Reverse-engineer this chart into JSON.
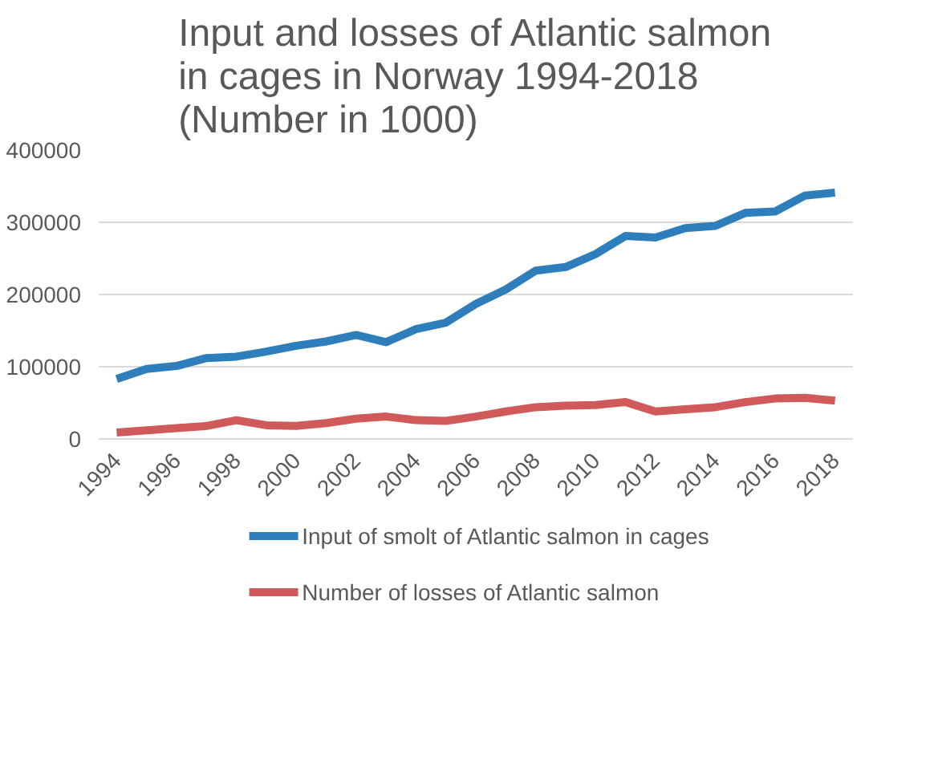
{
  "chart_data": {
    "type": "line",
    "title": "Input and losses of Atlantic salmon\nin cages in Norway 1994-2018\n(Number in 1000)",
    "categories": [
      "1994",
      null,
      "1996",
      null,
      "1998",
      null,
      "2000",
      null,
      "2002",
      null,
      "2004",
      null,
      "2006",
      null,
      "2008",
      null,
      "2010",
      null,
      "2012",
      null,
      "2014",
      null,
      "2016",
      null,
      "2018"
    ],
    "series": [
      {
        "name": "Input of smolt of Atlantic salmon in cages",
        "color": "#2e7ebb",
        "values": [
          83000,
          97000,
          101000,
          112000,
          114000,
          121000,
          129000,
          135000,
          144000,
          134000,
          152000,
          161000,
          187000,
          207000,
          233000,
          238000,
          256000,
          281000,
          279000,
          292000,
          295000,
          313000,
          315000,
          337000,
          341000
        ]
      },
      {
        "name": "Number of losses of Atlantic salmon",
        "color": "#d05a5a",
        "values": [
          9000,
          12000,
          15000,
          18000,
          26000,
          19000,
          18000,
          22000,
          28000,
          31000,
          26000,
          25000,
          31000,
          38000,
          44000,
          46000,
          47000,
          51000,
          38000,
          41000,
          44000,
          51000,
          56000,
          57000,
          53000
        ]
      }
    ],
    "ylim": [
      0,
      400000
    ],
    "yticks": [
      0,
      100000,
      200000,
      300000,
      400000
    ],
    "grid": "y",
    "legend": "bottom",
    "marker": "none",
    "line_style": "solid"
  }
}
